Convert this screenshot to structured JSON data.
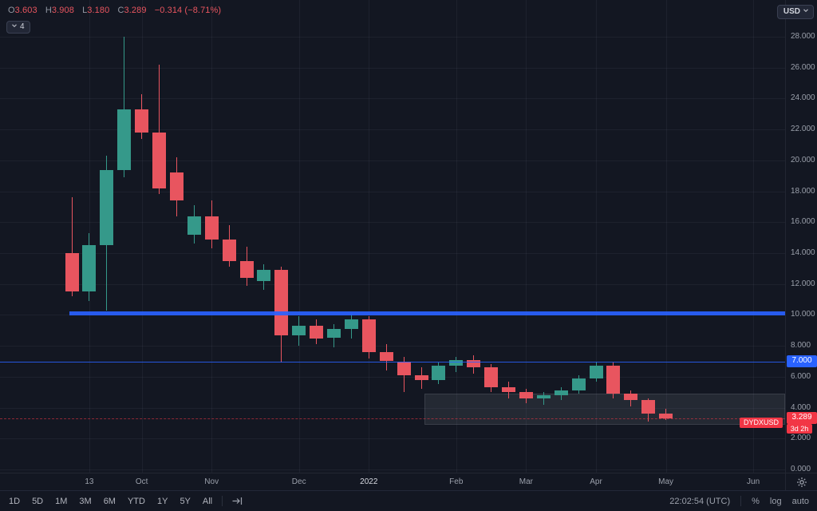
{
  "legend": {
    "o_label": "O",
    "o": "3.603",
    "h_label": "H",
    "h": "3.908",
    "l_label": "L",
    "l": "3.180",
    "c_label": "C",
    "c": "3.289",
    "change": "−0.314 (−8.71%)",
    "hidden_count": "4"
  },
  "header": {
    "currency_button": "USD"
  },
  "chart_data": {
    "type": "candlestick",
    "symbol": "DYDXUSD",
    "current_price": 3.289,
    "colors": {
      "up": "#35998a",
      "down": "#e8555f",
      "accent_blue": "#2962ff",
      "badge_red": "#f23645",
      "background": "#131722"
    },
    "y_axis": {
      "min": 0,
      "max": 28,
      "step": 2,
      "ticks": [
        {
          "value": 0,
          "label": "0.000"
        },
        {
          "value": 2,
          "label": "2.000"
        },
        {
          "value": 4,
          "label": "4.000"
        },
        {
          "value": 6,
          "label": "6.000"
        },
        {
          "value": 8,
          "label": "8.000"
        },
        {
          "value": 10,
          "label": "10.000"
        },
        {
          "value": 12,
          "label": "12.000"
        },
        {
          "value": 14,
          "label": "14.000"
        },
        {
          "value": 16,
          "label": "16.000"
        },
        {
          "value": 18,
          "label": "18.000"
        },
        {
          "value": 20,
          "label": "20.000"
        },
        {
          "value": 22,
          "label": "22.000"
        },
        {
          "value": 24,
          "label": "24.000"
        },
        {
          "value": 26,
          "label": "26.000"
        },
        {
          "value": 28,
          "label": "28.000"
        }
      ]
    },
    "x_axis": {
      "labels": [
        {
          "text": "13",
          "index": 1,
          "major": false
        },
        {
          "text": "Oct",
          "index": 4,
          "major": false
        },
        {
          "text": "Nov",
          "index": 8,
          "major": false
        },
        {
          "text": "Dec",
          "index": 13,
          "major": false
        },
        {
          "text": "2022",
          "index": 17,
          "major": true
        },
        {
          "text": "Feb",
          "index": 22,
          "major": false
        },
        {
          "text": "Mar",
          "index": 26,
          "major": false
        },
        {
          "text": "Apr",
          "index": 30,
          "major": false
        },
        {
          "text": "May",
          "index": 34,
          "major": false
        },
        {
          "text": "Jun",
          "index": 39,
          "major": false
        }
      ]
    },
    "candles": [
      {
        "o": 14.0,
        "h": 17.6,
        "l": 11.2,
        "c": 11.5
      },
      {
        "o": 11.5,
        "h": 15.3,
        "l": 10.9,
        "c": 14.5
      },
      {
        "o": 14.5,
        "h": 20.3,
        "l": 10.3,
        "c": 19.4
      },
      {
        "o": 19.4,
        "h": 28.0,
        "l": 18.9,
        "c": 23.3
      },
      {
        "o": 23.3,
        "h": 24.3,
        "l": 21.4,
        "c": 21.8
      },
      {
        "o": 21.8,
        "h": 26.2,
        "l": 17.8,
        "c": 18.2
      },
      {
        "o": 19.2,
        "h": 20.2,
        "l": 16.4,
        "c": 17.4
      },
      {
        "o": 15.2,
        "h": 17.1,
        "l": 14.6,
        "c": 16.4
      },
      {
        "o": 16.4,
        "h": 17.4,
        "l": 14.3,
        "c": 14.9
      },
      {
        "o": 14.9,
        "h": 15.8,
        "l": 13.1,
        "c": 13.5
      },
      {
        "o": 13.5,
        "h": 14.4,
        "l": 11.9,
        "c": 12.4
      },
      {
        "o": 12.2,
        "h": 13.3,
        "l": 11.6,
        "c": 12.9
      },
      {
        "o": 12.9,
        "h": 13.1,
        "l": 6.9,
        "c": 8.7
      },
      {
        "o": 8.7,
        "h": 9.9,
        "l": 8.0,
        "c": 9.3
      },
      {
        "o": 9.3,
        "h": 9.7,
        "l": 8.1,
        "c": 8.5
      },
      {
        "o": 8.5,
        "h": 9.4,
        "l": 7.9,
        "c": 9.1
      },
      {
        "o": 9.1,
        "h": 10.1,
        "l": 8.5,
        "c": 9.7
      },
      {
        "o": 9.7,
        "h": 9.9,
        "l": 7.2,
        "c": 7.6
      },
      {
        "o": 7.6,
        "h": 8.1,
        "l": 6.4,
        "c": 7.0
      },
      {
        "o": 7.0,
        "h": 7.3,
        "l": 5.0,
        "c": 6.1
      },
      {
        "o": 6.1,
        "h": 6.6,
        "l": 5.2,
        "c": 5.8
      },
      {
        "o": 5.8,
        "h": 6.9,
        "l": 5.5,
        "c": 6.7
      },
      {
        "o": 6.7,
        "h": 7.3,
        "l": 6.3,
        "c": 7.1
      },
      {
        "o": 7.1,
        "h": 7.4,
        "l": 6.2,
        "c": 6.6
      },
      {
        "o": 6.6,
        "h": 6.8,
        "l": 5.0,
        "c": 5.3
      },
      {
        "o": 5.3,
        "h": 5.7,
        "l": 4.6,
        "c": 5.0
      },
      {
        "o": 5.0,
        "h": 5.2,
        "l": 4.3,
        "c": 4.6
      },
      {
        "o": 4.6,
        "h": 5.0,
        "l": 4.2,
        "c": 4.8
      },
      {
        "o": 4.8,
        "h": 5.3,
        "l": 4.5,
        "c": 5.1
      },
      {
        "o": 5.1,
        "h": 6.1,
        "l": 4.9,
        "c": 5.9
      },
      {
        "o": 5.9,
        "h": 7.0,
        "l": 5.7,
        "c": 6.7
      },
      {
        "o": 6.7,
        "h": 6.9,
        "l": 4.6,
        "c": 4.9
      },
      {
        "o": 4.9,
        "h": 5.1,
        "l": 4.1,
        "c": 4.5
      },
      {
        "o": 4.5,
        "h": 4.6,
        "l": 3.1,
        "c": 3.6
      },
      {
        "o": 3.603,
        "h": 3.908,
        "l": 3.18,
        "c": 3.289
      }
    ],
    "overlays": {
      "horizontal_line": {
        "price": 10.1
      },
      "alert_line": {
        "price": 7.0,
        "badge": "7.000"
      },
      "zone": {
        "top_price": 4.9,
        "bottom_price": 2.9,
        "start_index": 20.2
      },
      "last_price_badge": "3.289",
      "countdown_badge": "3d 2h",
      "symbol_tag": "DYDXUSD"
    }
  },
  "footer": {
    "ranges": [
      "1D",
      "5D",
      "1M",
      "3M",
      "6M",
      "YTD",
      "1Y",
      "5Y",
      "All"
    ],
    "clock": "22:02:54 (UTC)",
    "percent": "%",
    "log": "log",
    "auto": "auto"
  }
}
